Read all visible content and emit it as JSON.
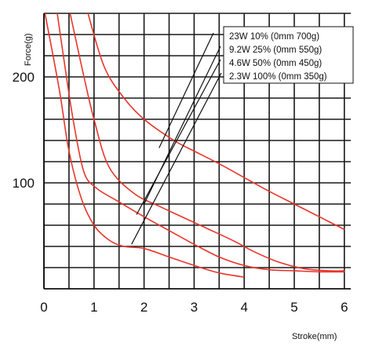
{
  "chart_data": {
    "type": "line",
    "title": "",
    "xlabel": "Stroke(mm)",
    "ylabel": "Force(g)",
    "xlim": [
      0,
      6.25
    ],
    "ylim": [
      0,
      265
    ],
    "x_ticks": [
      0,
      1,
      2,
      3,
      4,
      5,
      6
    ],
    "x_tick_labels": [
      "0",
      "1",
      "2",
      "3",
      "4",
      "5",
      "6"
    ],
    "y_ticks": [
      100,
      200
    ],
    "y_tick_labels": [
      "100",
      "200"
    ],
    "grid": true,
    "legend_position": "top-right",
    "line_color": "#e8352b",
    "series": [
      {
        "name": "23W 10% (0mm 700g)",
        "x": [
          0.85,
          1.2,
          1.6,
          2.0,
          2.6,
          3.0,
          3.5,
          4.0,
          4.5,
          5.0,
          5.5,
          6.0
        ],
        "y": [
          265,
          210,
          180,
          160,
          140,
          130,
          118,
          105,
          92,
          80,
          68,
          56
        ]
      },
      {
        "name": "9.2W 25% (0mm 550g)",
        "x": [
          0.5,
          0.8,
          1.0,
          1.3,
          1.8,
          2.3,
          2.8,
          3.3,
          3.8,
          4.2,
          4.7,
          5.2,
          5.7,
          6.0
        ],
        "y": [
          265,
          200,
          160,
          115,
          90,
          78,
          67,
          56,
          45,
          35,
          25,
          19,
          17,
          17
        ]
      },
      {
        "name": "4.6W 50% (0mm 450g)",
        "x": [
          0.25,
          0.45,
          0.6,
          0.8,
          1.05,
          1.5,
          2.0,
          2.5,
          3.0,
          3.5,
          4.0,
          4.5,
          5.0,
          5.5,
          6.0
        ],
        "y": [
          265,
          200,
          155,
          110,
          95,
          82,
          68,
          55,
          42,
          30,
          22,
          18,
          17,
          16,
          16
        ]
      },
      {
        "name": "2.3W 100% (0mm 350g)",
        "x": [
          0.0,
          0.3,
          0.5,
          0.75,
          1.0,
          1.3,
          1.6,
          2.0,
          2.5,
          3.0,
          3.5,
          4.0
        ],
        "y": [
          265,
          190,
          130,
          85,
          60,
          46,
          40,
          38,
          30,
          22,
          15,
          11
        ]
      }
    ]
  }
}
